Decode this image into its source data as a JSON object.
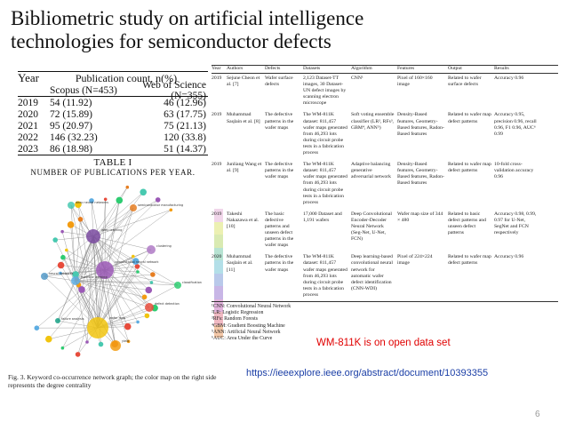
{
  "slide": {
    "title": "Bibliometric study on artificial intelligence technologies for semiconductor defects",
    "note": "WM-811K is on open data set",
    "url": "https://ieeexplore.ieee.org/abstract/document/10393355",
    "page_number": "6"
  },
  "table1": {
    "header_year": "Year",
    "header_pub": "Publication count, n(%)",
    "col_scopus": "Scopus (N=453)",
    "col_wos": "Web of Science (N=355)",
    "rows": [
      {
        "year": "2019",
        "scopus": "54 (11.92)",
        "wos": "46 (12.96)"
      },
      {
        "year": "2020",
        "scopus": "72 (15.89)",
        "wos": "63 (17.75)"
      },
      {
        "year": "2021",
        "scopus": "95 (20.97)",
        "wos": "75 (21.13)"
      },
      {
        "year": "2022",
        "scopus": "146 (32.23)",
        "wos": "120 (33.8)"
      },
      {
        "year": "2023",
        "scopus": "86 (18.98)",
        "wos": "51 (14.37)"
      }
    ],
    "caption_label": "TABLE I",
    "caption_text": "NUMBER OF PUBLICATIONS PER YEAR."
  },
  "figure3": {
    "caption": "Fig. 3.   Keyword co-occurrence network graph; the color map on the right side represents the degree centrality",
    "colorbar": [
      "#f1d6ea",
      "#ecf0b2",
      "#d9eab2",
      "#b7e3d2",
      "#b3dfe8",
      "#b9c9ea",
      "#c8b6e6",
      "#e2b3dc",
      "#f0b9c2",
      "#f4c8a8"
    ],
    "nodes": [
      {
        "label": "convolutional neural network",
        "color": "#9b59b6"
      },
      {
        "label": "deep learning",
        "color": "#7a4aa0"
      },
      {
        "label": "wafer map",
        "color": "#f1c40f"
      },
      {
        "label": "machine learning",
        "color": "#5dade2"
      },
      {
        "label": "deep neural networks",
        "color": "#48c9b0"
      },
      {
        "label": "semiconductor manufacturing",
        "color": "#e67e22"
      },
      {
        "label": "defect detection",
        "color": "#e74c3c"
      },
      {
        "label": "classification",
        "color": "#2ecc71"
      },
      {
        "label": "failure analysis",
        "color": "#16a085"
      },
      {
        "label": "clustering",
        "color": "#af7ac5"
      },
      {
        "label": "yield",
        "color": "#f39c12"
      },
      {
        "label": "neural networks",
        "color": "#5499c7"
      }
    ]
  },
  "table2": {
    "headers": [
      "Year",
      "Authors",
      "Defects",
      "Datasets",
      "Algorithm",
      "Features",
      "Output",
      "Results"
    ],
    "rows": [
      {
        "year": "2019",
        "authors": "Sejune Cheon et al. [7]",
        "defects": "Wafer surface defects",
        "datasets": "2,123 Dataset-TT images, 30 Dataset-UN defect images by scanning electron microscope",
        "algorithm": "CNN¹",
        "features": "Pixel of 160×160 image",
        "output": "Related to wafer surface defects",
        "results": "Accuracy 0.96"
      },
      {
        "year": "2019",
        "authors": "Muhammad Saqlain et al. [8]",
        "defects": "The defective patterns in the wafer maps",
        "datasets": "The WM-811K dataset: 811,457 wafer maps generated from 46,293 lots during circuit probe tests in a fabrication process",
        "algorithm": "Soft voting ensemble classifier (LR², RFs³, GBM⁴, ANN⁵)",
        "features": "Density-Based features, Geometry-Based features, Radon-Based features",
        "output": "Related to wafer map defect patterns",
        "results": "Accuracy 0.95, precision 0.96, recall 0.96, F1 0.96, AUC⁶ 0.99"
      },
      {
        "year": "2019",
        "authors": "Junliang Wang et al. [9]",
        "defects": "The defective patterns in the wafer maps",
        "datasets": "The WM-811K dataset: 811,457 wafer maps generated from 46,293 lots during circuit probe tests in a fabrication process",
        "algorithm": "Adaptive balancing generative adversarial network",
        "features": "Density-Based features, Geometry-Based features, Radon-Based features",
        "output": "Related to wafer map defect patterns",
        "results": "10-fold cross-validation accuracy 0.96"
      },
      {
        "year": "2019",
        "authors": "Takeshi Nakazawa et al. [10]",
        "defects": "The basic defective patterns and unseen defect patterns in the wafer maps",
        "datasets": "17,000 Dataset and 1,191 wafers",
        "algorithm": "Deep Convolutional Encoder-Decoder Neural Network (Seg-Net, U-Net, FCN)",
        "features": "Wafer map size of 344 × 480",
        "output": "Related to basic defect patterns and unseen defect patterns",
        "results": "Accuracy 0.98, 0.99, 0.97 for U-Net, SegNet and FCN respectively"
      },
      {
        "year": "2020",
        "authors": "Muhammad Saqlain et al. [11]",
        "defects": "The defective patterns in the wafer maps",
        "datasets": "The WM-811K dataset: 811,457 wafer maps generated from 46,293 lots during circuit probe tests in a fabrication process",
        "algorithm": "Deep learning-based convolutional neural network for automatic wafer defect identification (CNN-WDI)",
        "features": "Pixel of 224×224 image",
        "output": "Related to wafer map defect patterns",
        "results": "Accuracy 0.96"
      }
    ],
    "footnotes": [
      "¹CNN: Convolutional Neural Network",
      "²LR: Logistic Regression",
      "³RFs: Random Forests",
      "⁴GBM: Gradient Boosting Machine",
      "⁵ANN: Artificial Neural Network",
      "⁶AUC: Area Under the Curve"
    ]
  }
}
